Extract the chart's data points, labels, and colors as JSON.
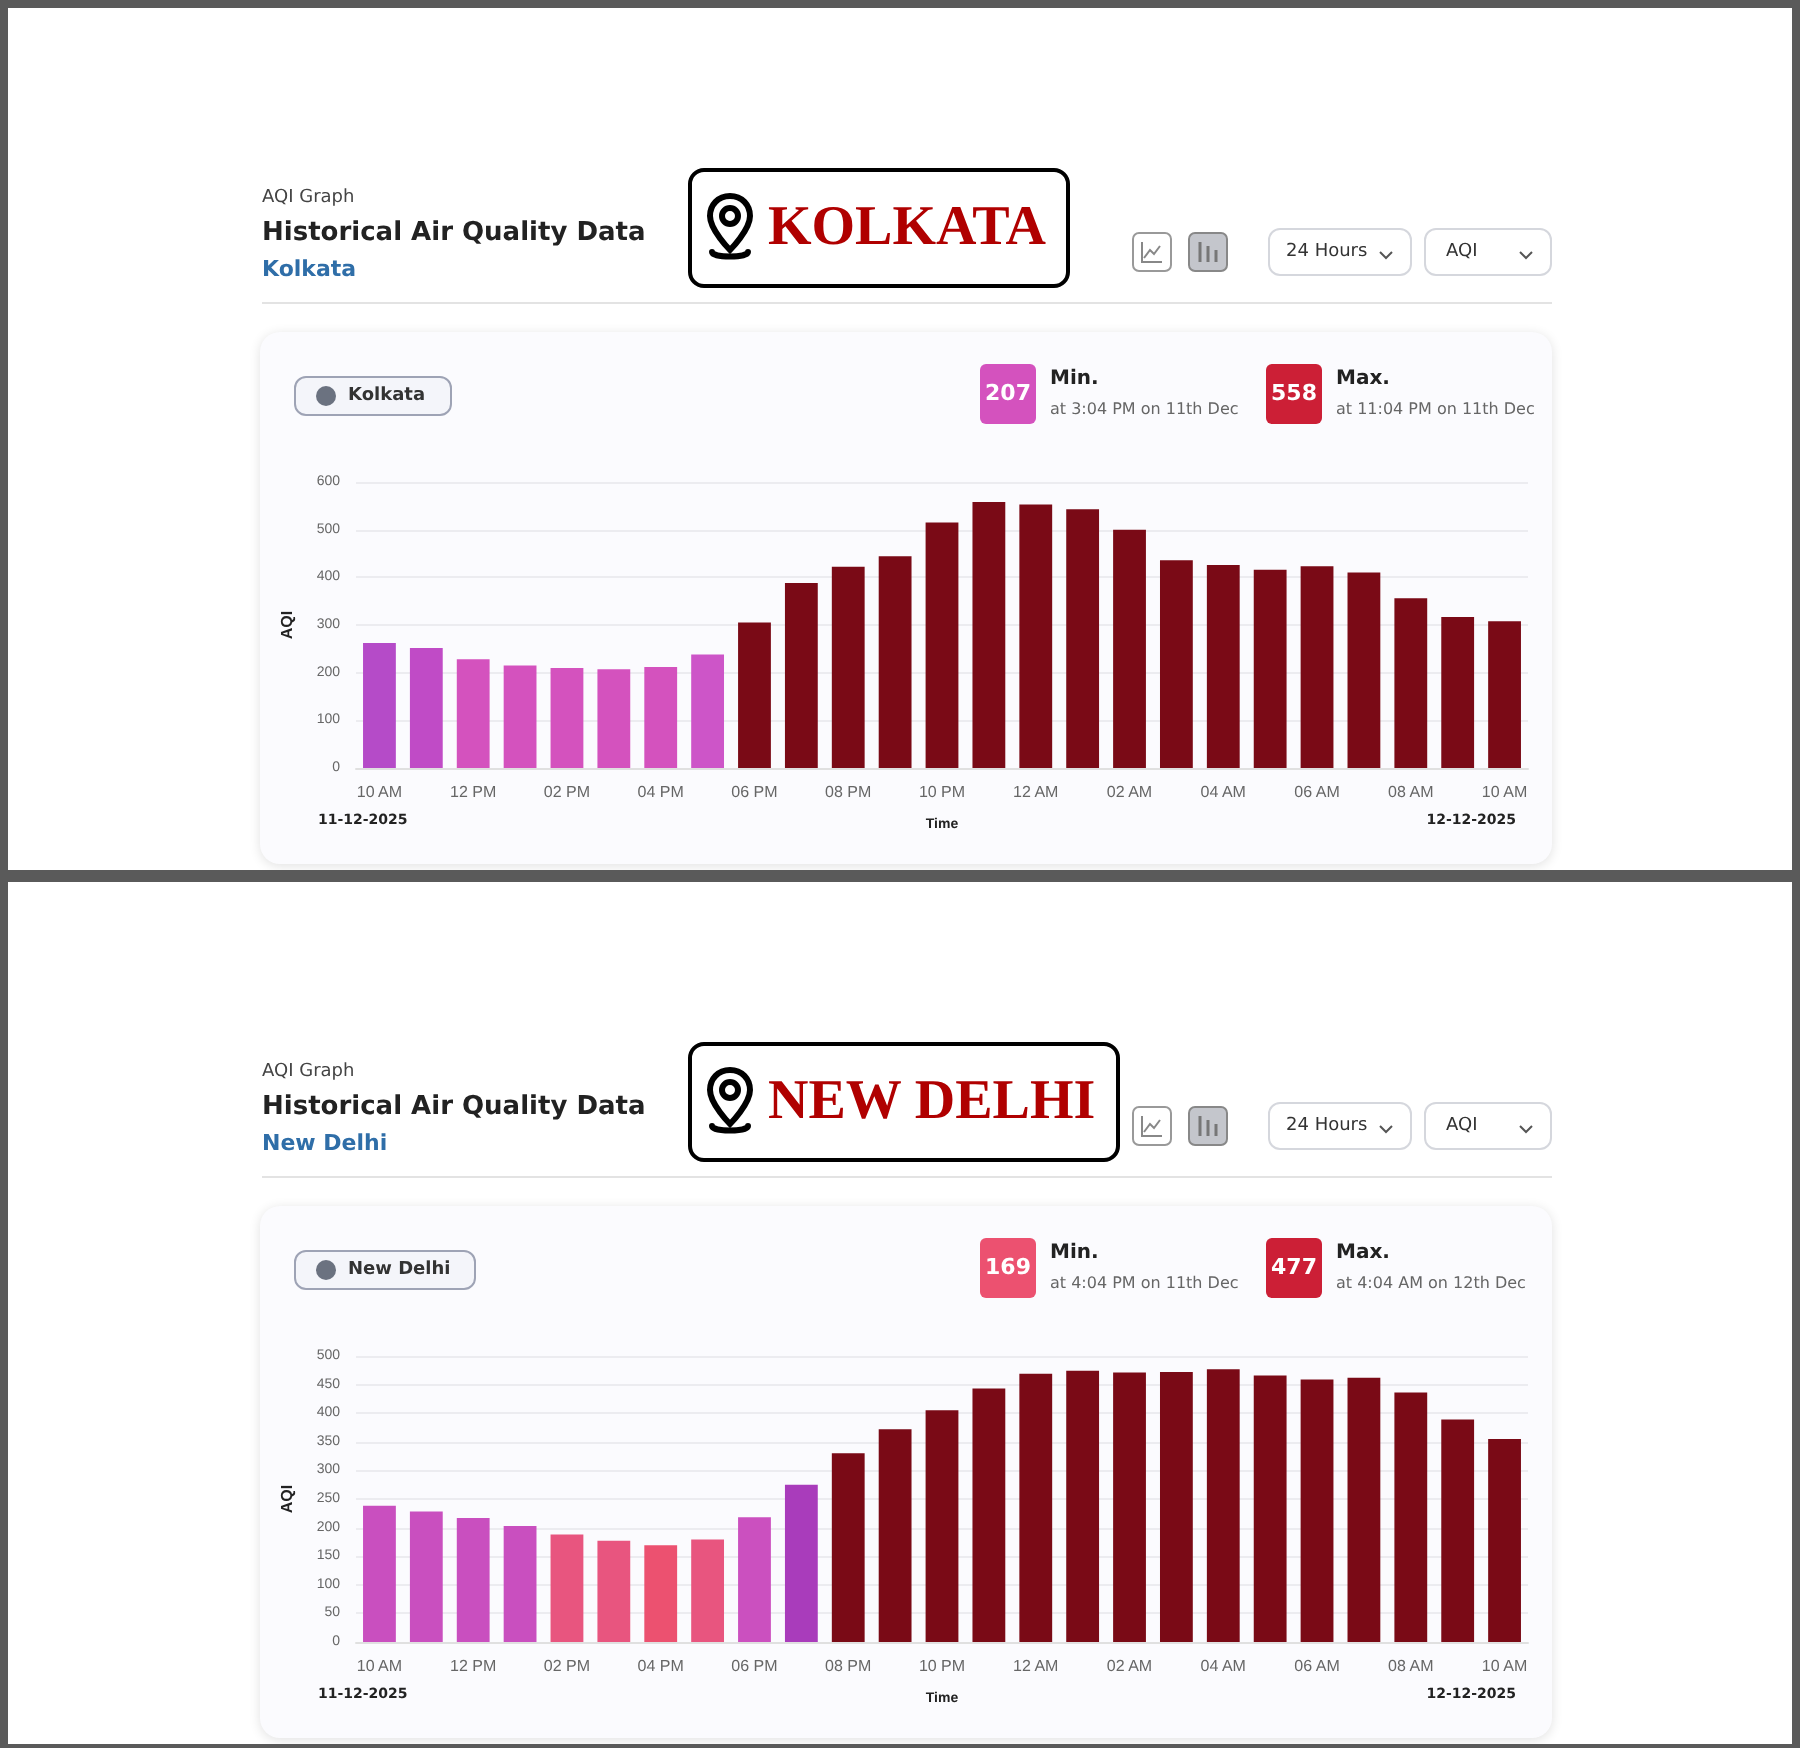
{
  "chart_data": [
    {
      "type": "bar",
      "title": "Historical Air Quality Data",
      "subtitle": "Kolkata",
      "xlabel": "Time",
      "ylabel": "AQI",
      "annotations": [
        "AQI Graph",
        "KOLKATA",
        "24 Hours",
        "AQI",
        "207",
        "Min.",
        "at 3:04 PM on 11th Dec",
        "558",
        "Max.",
        "at 11:04 PM on 11th Dec",
        "11-12-2025",
        "12-12-2025"
      ],
      "categories": [
        "10 AM",
        null,
        "12 PM",
        null,
        "02 PM",
        null,
        "04 PM",
        null,
        "06 PM",
        null,
        "08 PM",
        null,
        "10 PM",
        null,
        "12 AM",
        null,
        "02 AM",
        null,
        "04 AM",
        null,
        "06 AM",
        null,
        "08 AM",
        null,
        "10 AM"
      ],
      "series": [
        {
          "name": "Kolkata",
          "values": [
            262,
            252,
            228,
            215,
            210,
            207,
            212,
            238,
            305,
            388,
            422,
            444,
            515,
            558,
            553,
            543,
            500,
            436,
            426,
            416,
            423,
            410,
            356,
            317,
            308
          ],
          "colors": [
            "#b54bc8",
            "#c04bc6",
            "#d452be",
            "#d452be",
            "#d452be",
            "#d452be",
            "#d452be",
            "#cd55c8",
            "#7a0a16",
            "#7a0a16",
            "#7a0a16",
            "#7a0a16",
            "#7a0a16",
            "#7a0a16",
            "#7a0a16",
            "#7a0a16",
            "#7a0a16",
            "#7a0a16",
            "#7a0a16",
            "#7a0a16",
            "#7a0a16",
            "#7a0a16",
            "#7a0a16",
            "#7a0a16",
            "#7a0a16"
          ]
        }
      ],
      "ylim": [
        0,
        600
      ],
      "yticks": [
        0,
        100,
        200,
        300,
        400,
        500,
        600
      ],
      "grid": "y",
      "legend": "top left"
    },
    {
      "type": "bar",
      "title": "Historical Air Quality Data",
      "subtitle": "New Delhi",
      "xlabel": "Time",
      "ylabel": "AQI",
      "annotations": [
        "AQI Graph",
        "NEW DELHI",
        "24 Hours",
        "AQI",
        "169",
        "Min.",
        "at 4:04 PM on 11th Dec",
        "477",
        "Max.",
        "at 4:04 AM on 12th Dec",
        "11-12-2025",
        "12-12-2025"
      ],
      "categories": [
        "10 AM",
        null,
        "12 PM",
        null,
        "02 PM",
        null,
        "04 PM",
        null,
        "06 PM",
        null,
        "08 PM",
        null,
        "10 PM",
        null,
        "12 AM",
        null,
        "02 AM",
        null,
        "04 AM",
        null,
        "06 AM",
        null,
        "08 AM",
        null,
        "10 AM"
      ],
      "series": [
        {
          "name": "New Delhi",
          "values": [
            238,
            228,
            217,
            203,
            188,
            177,
            169,
            179,
            218,
            275,
            330,
            372,
            405,
            443,
            469,
            474,
            471,
            472,
            477,
            466,
            459,
            462,
            436,
            389,
            355
          ],
          "colors": [
            "#c94fbf",
            "#c94fbf",
            "#c94fbf",
            "#c94fbf",
            "#e8557f",
            "#e8557f",
            "#ec5170",
            "#e8557f",
            "#cb50bf",
            "#a93cbb",
            "#7a0a16",
            "#7a0a16",
            "#7a0a16",
            "#7a0a16",
            "#7a0a16",
            "#7a0a16",
            "#7a0a16",
            "#7a0a16",
            "#7a0a16",
            "#7a0a16",
            "#7a0a16",
            "#7a0a16",
            "#7a0a16",
            "#7a0a16",
            "#7a0a16"
          ]
        }
      ],
      "ylim": [
        0,
        500
      ],
      "yticks": [
        0,
        50,
        100,
        150,
        200,
        250,
        300,
        350,
        400,
        450,
        500
      ],
      "grid": "y",
      "legend": "top left"
    }
  ]
}
